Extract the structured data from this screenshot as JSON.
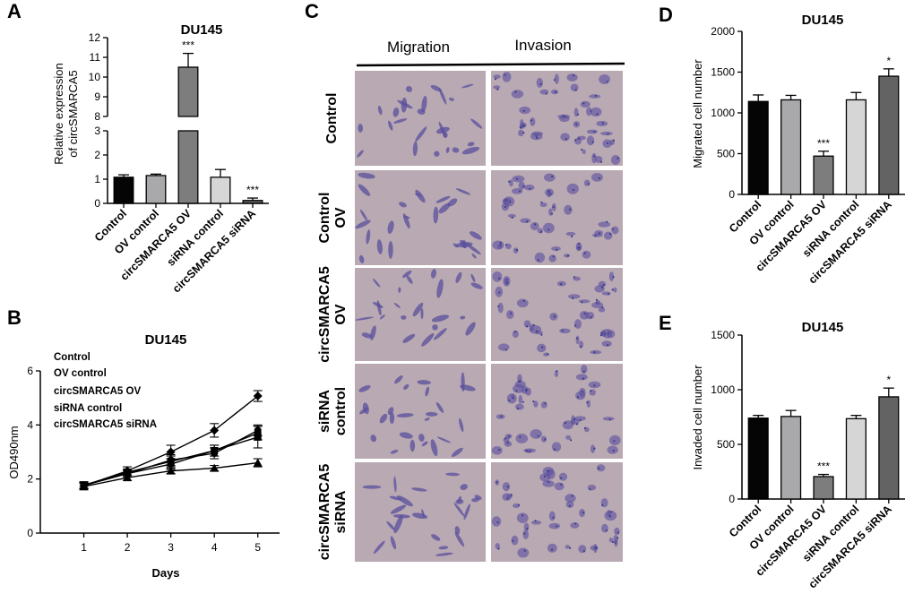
{
  "figure": {
    "panel_labels": [
      "A",
      "B",
      "C",
      "D",
      "E"
    ]
  },
  "chart_data": [
    {
      "panel": "A",
      "type": "bar",
      "title": "DU145",
      "ylabel": "Relative expression of circSMARCA5",
      "categories": [
        "Control",
        "OV control",
        "circSMARCA5 OV",
        "siRNA control",
        "circSMARCA5 siRNA"
      ],
      "values": [
        1.08,
        1.15,
        10.5,
        1.08,
        0.12
      ],
      "errors": [
        0.1,
        0.06,
        0.7,
        0.32,
        0.1
      ],
      "significance": [
        "",
        "",
        "***",
        "",
        "***"
      ],
      "colors": [
        "#050505",
        "#a9a9ab",
        "#7d7d7d",
        "#d6d6d6",
        "#636363"
      ],
      "axis_break": [
        3,
        8
      ],
      "ylim": [
        0,
        12
      ],
      "yticks_lower": [
        0,
        1,
        2,
        3
      ],
      "yticks_upper": [
        8,
        9,
        10,
        11,
        12
      ]
    },
    {
      "panel": "B",
      "type": "line",
      "title": "DU145",
      "xlabel": "Days",
      "ylabel": "OD490nm",
      "x": [
        1,
        2,
        3,
        4,
        5
      ],
      "xlim": [
        0,
        5.5
      ],
      "ylim": [
        0,
        6
      ],
      "yticks": [
        0,
        2,
        4,
        6
      ],
      "series": [
        {
          "name": "Control",
          "values": [
            1.78,
            2.2,
            2.55,
            3.05,
            3.7
          ],
          "errors": [
            0.12,
            0.12,
            0.2,
            0.2,
            0.25
          ],
          "marker": "circle"
        },
        {
          "name": "OV control",
          "values": [
            1.77,
            2.25,
            2.65,
            3.05,
            3.55
          ],
          "errors": [
            0.12,
            0.12,
            0.2,
            0.2,
            0.4
          ],
          "marker": "square"
        },
        {
          "name": "circSMARCA5 OV",
          "values": [
            1.75,
            2.3,
            3.0,
            3.8,
            5.07
          ],
          "errors": [
            0.1,
            0.15,
            0.25,
            0.25,
            0.2
          ],
          "marker": "diamond"
        },
        {
          "name": "siRNA control",
          "values": [
            1.76,
            2.2,
            2.7,
            2.95,
            3.8
          ],
          "errors": [
            0.12,
            0.12,
            0.2,
            0.2,
            0.2
          ],
          "marker": "circle"
        },
        {
          "name": "circSMARCA5 siRNA",
          "values": [
            1.72,
            2.05,
            2.3,
            2.4,
            2.6
          ],
          "errors": [
            0.12,
            0.1,
            0.1,
            0.1,
            0.15
          ],
          "marker": "triangle"
        }
      ]
    },
    {
      "panel": "D",
      "type": "bar",
      "title": "DU145",
      "ylabel": "Migrated cell number",
      "categories": [
        "Control",
        "OV control",
        "circSMARCA5 OV",
        "siRNA control",
        "circSMARCA5 siRNA"
      ],
      "values": [
        1140,
        1160,
        470,
        1160,
        1450
      ],
      "errors": [
        80,
        55,
        60,
        90,
        90
      ],
      "significance": [
        "",
        "",
        "***",
        "",
        "*"
      ],
      "colors": [
        "#050505",
        "#a9a9ab",
        "#7d7d7d",
        "#d6d6d6",
        "#636363"
      ],
      "ylim": [
        0,
        2000
      ],
      "yticks": [
        0,
        500,
        1000,
        1500,
        2000
      ]
    },
    {
      "panel": "E",
      "type": "bar",
      "title": "DU145",
      "ylabel": "Invaded cell number",
      "categories": [
        "Control",
        "OV control",
        "circSMARCA5 OV",
        "siRNA control",
        "circSMARCA5 siRNA"
      ],
      "values": [
        740,
        755,
        205,
        735,
        935
      ],
      "errors": [
        25,
        55,
        20,
        30,
        80
      ],
      "significance": [
        "",
        "",
        "***",
        "",
        "*"
      ],
      "colors": [
        "#050505",
        "#a9a9ab",
        "#7d7d7d",
        "#d6d6d6",
        "#636363"
      ],
      "ylim": [
        0,
        1500
      ],
      "yticks": [
        0,
        500,
        1000,
        1500
      ]
    }
  ],
  "micrographs": {
    "columns": [
      "Migration",
      "Invasion"
    ],
    "rows": [
      {
        "label_lines": [
          "Control"
        ]
      },
      {
        "label_lines": [
          "Control",
          "OV"
        ]
      },
      {
        "label_lines": [
          "circSMARCA5",
          "OV"
        ]
      },
      {
        "label_lines": [
          "siRNA",
          "control"
        ]
      },
      {
        "label_lines": [
          "circSMARCA5",
          "siRNA"
        ]
      }
    ],
    "colors": {
      "background": "#b9a9b3",
      "stain": "#5a4f9c",
      "dark_stain": "#3c3f8a"
    }
  }
}
